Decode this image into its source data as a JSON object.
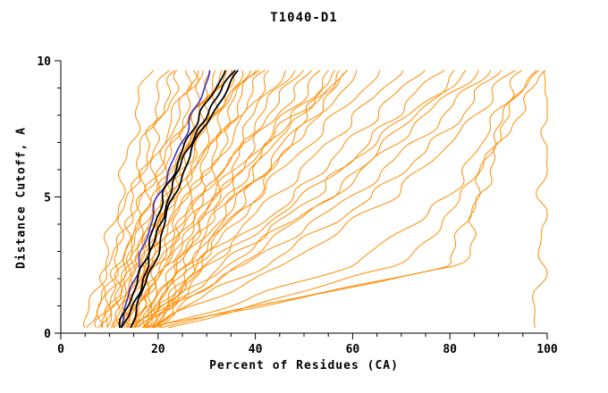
{
  "title": "T1040-D1",
  "chart_data": {
    "type": "line",
    "title": "T1040-D1",
    "xlabel": "Percent of Residues (CA)",
    "ylabel": "Distance Cutoff, A",
    "xlim": [
      0,
      100
    ],
    "ylim": [
      0,
      10
    ],
    "x_major_ticks": [
      0,
      20,
      40,
      60,
      80,
      100
    ],
    "x_minor_step": 5,
    "y_major_ticks": [
      0,
      5,
      10
    ],
    "y_minor_step": 1,
    "grid": false,
    "legend": "none",
    "axis_color": "#000000",
    "control_y_levels": [
      0.2,
      2.5,
      5.0,
      7.5,
      9.7
    ],
    "series": [
      {
        "name": "model-ensemble",
        "color": "#ff8c00",
        "stroke_width": 1,
        "curves_x": [
          [
            5,
            9,
            12,
            15,
            18
          ],
          [
            6,
            10,
            14,
            18,
            22
          ],
          [
            7,
            11,
            15,
            19,
            24
          ],
          [
            8,
            12,
            16,
            20,
            25
          ],
          [
            8,
            13,
            17,
            22,
            27
          ],
          [
            9,
            13,
            18,
            23,
            28
          ],
          [
            9,
            14,
            19,
            24,
            29
          ],
          [
            10,
            14,
            19,
            25,
            30
          ],
          [
            10,
            15,
            20,
            26,
            31
          ],
          [
            11,
            15,
            21,
            27,
            32
          ],
          [
            11,
            16,
            22,
            28,
            33
          ],
          [
            12,
            16,
            22,
            28,
            34
          ],
          [
            12,
            17,
            23,
            29,
            35
          ],
          [
            13,
            17,
            24,
            30,
            36
          ],
          [
            13,
            18,
            24,
            31,
            37
          ],
          [
            14,
            18,
            25,
            32,
            38
          ],
          [
            14,
            19,
            26,
            33,
            39
          ],
          [
            15,
            20,
            27,
            34,
            40
          ],
          [
            15,
            20,
            28,
            35,
            42
          ],
          [
            16,
            21,
            29,
            36,
            44
          ],
          [
            16,
            22,
            30,
            38,
            46
          ],
          [
            17,
            23,
            31,
            39,
            48
          ],
          [
            17,
            24,
            32,
            40,
            50
          ],
          [
            18,
            25,
            33,
            42,
            52
          ],
          [
            18,
            26,
            34,
            44,
            54
          ],
          [
            19,
            27,
            36,
            46,
            56
          ],
          [
            19,
            28,
            38,
            48,
            58
          ],
          [
            20,
            29,
            40,
            50,
            60
          ],
          [
            14,
            22,
            34,
            46,
            58
          ],
          [
            15,
            24,
            37,
            50,
            62
          ],
          [
            16,
            26,
            40,
            54,
            66
          ],
          [
            17,
            28,
            44,
            58,
            70
          ],
          [
            18,
            30,
            48,
            62,
            74
          ],
          [
            19,
            33,
            52,
            66,
            78
          ],
          [
            20,
            36,
            56,
            70,
            82
          ],
          [
            15,
            30,
            50,
            68,
            84
          ],
          [
            16,
            34,
            55,
            72,
            86
          ],
          [
            14,
            38,
            60,
            76,
            88
          ],
          [
            17,
            42,
            64,
            80,
            90
          ],
          [
            18,
            46,
            68,
            83,
            93
          ],
          [
            20,
            60,
            80,
            88,
            95
          ],
          [
            22,
            70,
            83,
            90,
            97
          ],
          [
            20,
            80,
            85,
            90,
            98
          ],
          [
            18,
            83,
            86,
            92,
            100
          ],
          [
            97,
            99,
            99,
            100,
            100
          ],
          [
            13,
            20,
            30,
            45,
            60
          ]
        ]
      },
      {
        "name": "highlight-blue",
        "color": "#3333cc",
        "stroke_width": 1.6,
        "curves_x": [
          [
            12,
            16,
            20,
            26,
            31
          ]
        ]
      },
      {
        "name": "highlight-black",
        "color": "#000000",
        "stroke_width": 1.8,
        "curves_x": [
          [
            12,
            17,
            21,
            27,
            34
          ],
          [
            13,
            18,
            22,
            28,
            36
          ],
          [
            14,
            19,
            23,
            29,
            37
          ]
        ]
      }
    ]
  }
}
